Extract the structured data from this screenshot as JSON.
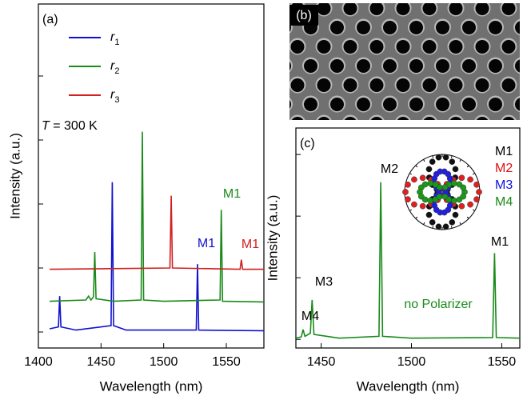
{
  "chart_data": [
    {
      "type": "line",
      "panel_label": "(a)",
      "ylabel": "Intensity (a.u.)",
      "xlabel": "Wavelength (nm)",
      "xlim": [
        1400,
        1580
      ],
      "xticks": [
        1400,
        1450,
        1500,
        1550
      ],
      "ylim": [
        -0.25,
        5.125
      ],
      "yticks": [
        0,
        1,
        2,
        3,
        4
      ],
      "note": "T = 300 K",
      "series": [
        {
          "name": "r1",
          "color": "#1010d0",
          "x": [
            1409,
            1416,
            1417,
            1418,
            1430,
            1458,
            1459,
            1460,
            1470,
            1526,
            1527,
            1528,
            1580
          ],
          "values": [
            0.05,
            0.08,
            0.56,
            0.08,
            0.03,
            0.1,
            2.34,
            0.1,
            0.03,
            0.03,
            1.06,
            0.03,
            0.02
          ]
        },
        {
          "name": "r2",
          "color": "#1a8a1a",
          "x": [
            1409,
            1438,
            1440,
            1442,
            1444,
            1445,
            1446,
            1460,
            1482,
            1483,
            1484,
            1500,
            1545,
            1546,
            1547,
            1580
          ],
          "values": [
            0.48,
            0.5,
            0.56,
            0.5,
            0.55,
            1.25,
            0.52,
            0.48,
            0.5,
            3.13,
            0.5,
            0.48,
            0.5,
            1.91,
            0.48,
            0.47
          ]
        },
        {
          "name": "r3",
          "color": "#d02020",
          "x": [
            1409,
            1505,
            1506,
            1507,
            1561,
            1562,
            1563,
            1580
          ],
          "values": [
            0.98,
            1.0,
            2.13,
            1.0,
            0.98,
            1.13,
            0.98,
            0.98
          ]
        }
      ],
      "annotations": [
        {
          "text": "M1",
          "color": "#1010d0"
        },
        {
          "text": "M1",
          "color": "#1a8a1a"
        },
        {
          "text": "M1",
          "color": "#d02020"
        }
      ]
    },
    {
      "type": "line",
      "panel_label": "(c)",
      "ylabel": "Intensity (a.u.)",
      "xlabel": "Wavelength (nm)",
      "xlim": [
        1436,
        1560
      ],
      "xticks": [
        1450,
        1500,
        1550
      ],
      "ylim": [
        -0.14,
        3.43
      ],
      "yticks": [
        0,
        1,
        2,
        3
      ],
      "series": [
        {
          "name": "no Polarizer",
          "color": "#1a8a1a",
          "x": [
            1436,
            1439,
            1440,
            1441,
            1444,
            1445,
            1446,
            1460,
            1482,
            1483,
            1484,
            1500,
            1545,
            1546,
            1547,
            1560
          ],
          "values": [
            0.02,
            0.04,
            0.16,
            0.05,
            0.1,
            0.64,
            0.08,
            0.02,
            0.05,
            2.55,
            0.05,
            0.02,
            0.03,
            1.4,
            0.03,
            0.02
          ]
        }
      ],
      "annotations": [
        {
          "text": "M4",
          "color": "#000000"
        },
        {
          "text": "M3",
          "color": "#000000"
        },
        {
          "text": "M2",
          "color": "#000000"
        },
        {
          "text": "M1",
          "color": "#000000"
        }
      ],
      "inset_legend": [
        {
          "name": "M1",
          "color": "#000000"
        },
        {
          "name": "M2",
          "color": "#e01010"
        },
        {
          "name": "M3",
          "color": "#1010e0"
        },
        {
          "name": "M4",
          "color": "#1a8a1a"
        }
      ]
    }
  ],
  "image_panel": {
    "label": "(b)"
  }
}
